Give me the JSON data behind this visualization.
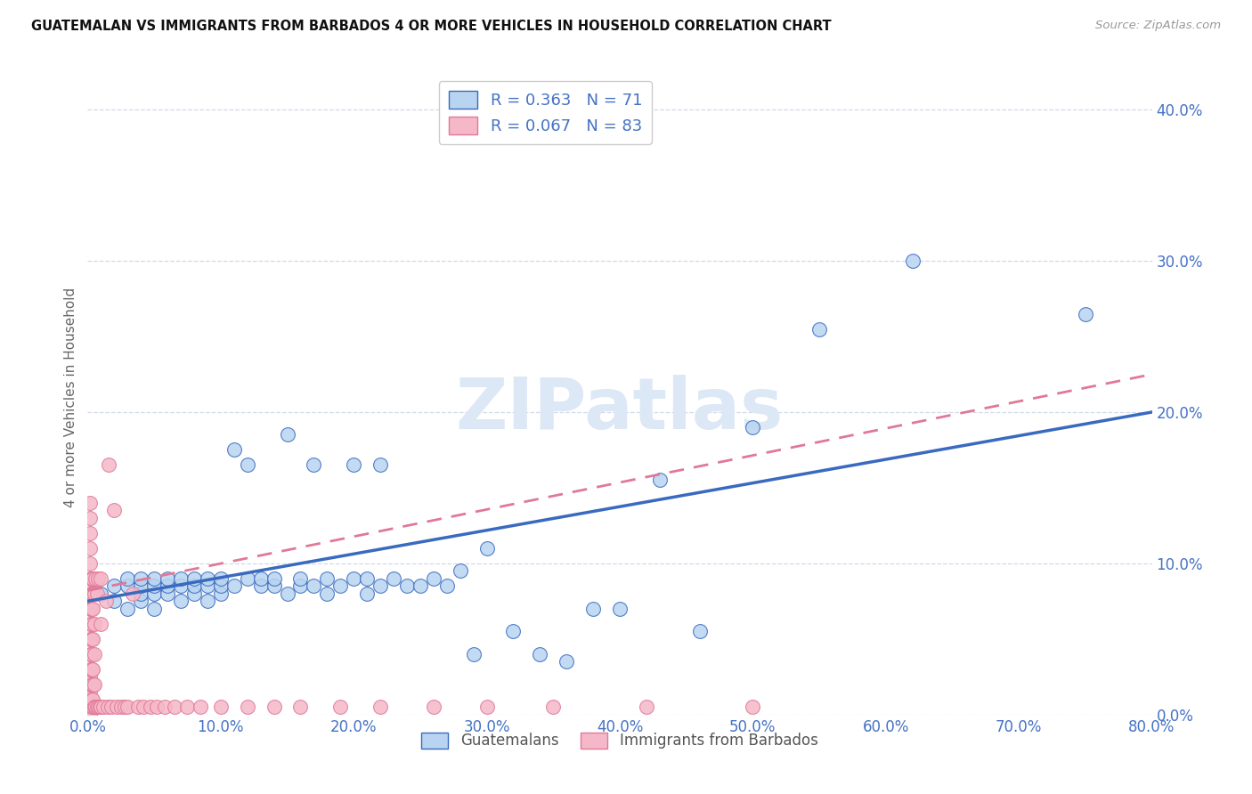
{
  "title": "GUATEMALAN VS IMMIGRANTS FROM BARBADOS 4 OR MORE VEHICLES IN HOUSEHOLD CORRELATION CHART",
  "source": "Source: ZipAtlas.com",
  "ylabel": "4 or more Vehicles in Household",
  "legend_label_blue": "Guatemalans",
  "legend_label_pink": "Immigrants from Barbados",
  "R_blue": 0.363,
  "N_blue": 71,
  "R_pink": 0.067,
  "N_pink": 83,
  "xlim": [
    0.0,
    0.8
  ],
  "ylim": [
    0.0,
    0.42
  ],
  "xticks": [
    0.0,
    0.1,
    0.2,
    0.3,
    0.4,
    0.5,
    0.6,
    0.7,
    0.8
  ],
  "yticks": [
    0.0,
    0.1,
    0.2,
    0.3,
    0.4
  ],
  "color_blue": "#b8d4f0",
  "color_pink": "#f5b8c8",
  "color_blue_line": "#3a6abf",
  "color_pink_line": "#e07898",
  "color_axis_labels": "#4472c4",
  "watermark_color": "#dce8f5",
  "blue_line_x0": 0.0,
  "blue_line_y0": 0.075,
  "blue_line_x1": 0.8,
  "blue_line_y1": 0.2,
  "pink_line_x0": 0.0,
  "pink_line_y0": 0.082,
  "pink_line_x1": 0.8,
  "pink_line_y1": 0.225,
  "blue_scatter_x": [
    0.01,
    0.02,
    0.02,
    0.03,
    0.03,
    0.03,
    0.04,
    0.04,
    0.04,
    0.04,
    0.05,
    0.05,
    0.05,
    0.05,
    0.06,
    0.06,
    0.06,
    0.07,
    0.07,
    0.07,
    0.08,
    0.08,
    0.08,
    0.09,
    0.09,
    0.09,
    0.1,
    0.1,
    0.1,
    0.11,
    0.11,
    0.12,
    0.12,
    0.13,
    0.13,
    0.14,
    0.14,
    0.15,
    0.15,
    0.16,
    0.16,
    0.17,
    0.17,
    0.18,
    0.18,
    0.19,
    0.2,
    0.2,
    0.21,
    0.21,
    0.22,
    0.22,
    0.23,
    0.24,
    0.25,
    0.26,
    0.27,
    0.28,
    0.29,
    0.3,
    0.32,
    0.34,
    0.36,
    0.38,
    0.4,
    0.43,
    0.46,
    0.5,
    0.55,
    0.62,
    0.75
  ],
  "blue_scatter_y": [
    0.08,
    0.075,
    0.085,
    0.07,
    0.085,
    0.09,
    0.075,
    0.08,
    0.085,
    0.09,
    0.07,
    0.08,
    0.085,
    0.09,
    0.08,
    0.085,
    0.09,
    0.075,
    0.085,
    0.09,
    0.08,
    0.085,
    0.09,
    0.075,
    0.085,
    0.09,
    0.08,
    0.085,
    0.09,
    0.085,
    0.175,
    0.09,
    0.165,
    0.085,
    0.09,
    0.085,
    0.09,
    0.185,
    0.08,
    0.085,
    0.09,
    0.085,
    0.165,
    0.08,
    0.09,
    0.085,
    0.165,
    0.09,
    0.08,
    0.09,
    0.085,
    0.165,
    0.09,
    0.085,
    0.085,
    0.09,
    0.085,
    0.095,
    0.04,
    0.11,
    0.055,
    0.04,
    0.035,
    0.07,
    0.07,
    0.155,
    0.055,
    0.19,
    0.255,
    0.3,
    0.265
  ],
  "pink_scatter_x": [
    0.002,
    0.002,
    0.002,
    0.002,
    0.002,
    0.002,
    0.002,
    0.002,
    0.002,
    0.002,
    0.002,
    0.002,
    0.002,
    0.002,
    0.002,
    0.002,
    0.002,
    0.002,
    0.002,
    0.002,
    0.003,
    0.003,
    0.003,
    0.003,
    0.003,
    0.003,
    0.003,
    0.003,
    0.003,
    0.003,
    0.004,
    0.004,
    0.004,
    0.004,
    0.004,
    0.004,
    0.004,
    0.004,
    0.005,
    0.005,
    0.005,
    0.005,
    0.005,
    0.006,
    0.006,
    0.007,
    0.007,
    0.008,
    0.008,
    0.009,
    0.01,
    0.01,
    0.01,
    0.012,
    0.014,
    0.015,
    0.016,
    0.018,
    0.02,
    0.022,
    0.025,
    0.028,
    0.03,
    0.034,
    0.038,
    0.042,
    0.047,
    0.052,
    0.058,
    0.065,
    0.075,
    0.085,
    0.1,
    0.12,
    0.14,
    0.16,
    0.19,
    0.22,
    0.26,
    0.3,
    0.35,
    0.42,
    0.5
  ],
  "pink_scatter_y": [
    0.005,
    0.01,
    0.015,
    0.02,
    0.025,
    0.03,
    0.04,
    0.05,
    0.06,
    0.07,
    0.08,
    0.09,
    0.1,
    0.11,
    0.12,
    0.13,
    0.14,
    0.0,
    0.0,
    0.0,
    0.005,
    0.01,
    0.02,
    0.03,
    0.04,
    0.05,
    0.06,
    0.07,
    0.08,
    0.09,
    0.005,
    0.01,
    0.02,
    0.03,
    0.05,
    0.07,
    0.08,
    0.09,
    0.005,
    0.02,
    0.04,
    0.06,
    0.08,
    0.005,
    0.09,
    0.005,
    0.08,
    0.005,
    0.09,
    0.005,
    0.005,
    0.06,
    0.09,
    0.005,
    0.075,
    0.005,
    0.165,
    0.005,
    0.135,
    0.005,
    0.005,
    0.005,
    0.005,
    0.08,
    0.005,
    0.005,
    0.005,
    0.005,
    0.005,
    0.005,
    0.005,
    0.005,
    0.005,
    0.005,
    0.005,
    0.005,
    0.005,
    0.005,
    0.005,
    0.005,
    0.005,
    0.005,
    0.005
  ]
}
